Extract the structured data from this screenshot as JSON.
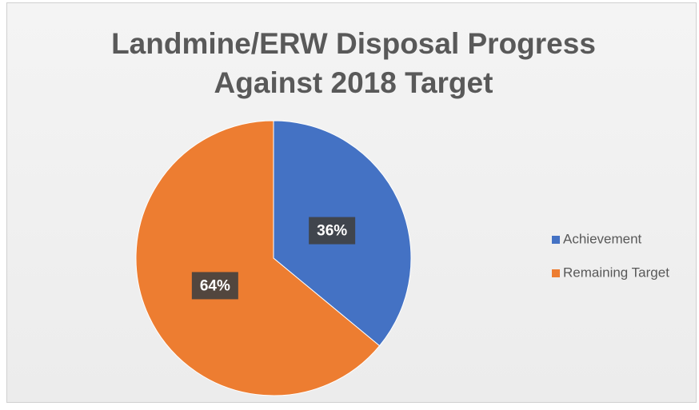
{
  "chart_data": {
    "type": "pie",
    "title": [
      "Landmine/ERW Disposal Progress",
      "Against 2018 Target"
    ],
    "categories": [
      "Achievement",
      "Remaining Target"
    ],
    "values": [
      36,
      64
    ],
    "value_labels": [
      "36%",
      "64%"
    ],
    "colors": [
      "#4472c4",
      "#ed7d31"
    ],
    "legend": "right"
  }
}
